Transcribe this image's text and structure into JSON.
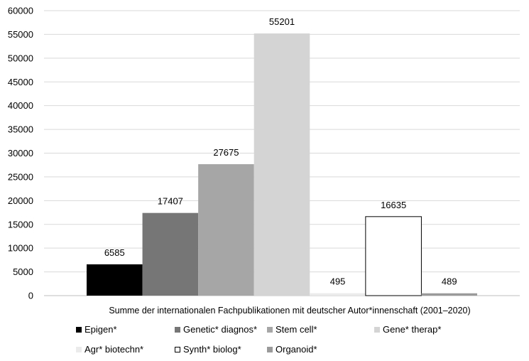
{
  "chart_data": {
    "type": "bar",
    "title": "",
    "xlabel": "Summe der internationalen Fachpublikationen mit deutscher Autor*innenschaft (2001–2020)",
    "ylabel": "",
    "ylim": [
      0,
      60000
    ],
    "yticks": [
      "0",
      "5000",
      "10000",
      "15000",
      "20000",
      "25000",
      "30000",
      "35000",
      "40000",
      "45000",
      "50000",
      "55000",
      "60000"
    ],
    "grid": true,
    "legend_position": "bottom",
    "series": [
      {
        "name": "Epigen*",
        "value": 6585,
        "label": "6585",
        "color": "#000000"
      },
      {
        "name": "Genetic* diagnos*",
        "value": 17407,
        "label": "17407",
        "color": "#767676"
      },
      {
        "name": "Stem cell*",
        "value": 27675,
        "label": "27675",
        "color": "#a6a6a6"
      },
      {
        "name": "Gene* therap*",
        "value": 55201,
        "label": "55201",
        "color": "#d4d4d4"
      },
      {
        "name": "Agr* biotechn*",
        "value": 495,
        "label": "495",
        "color": "#ebebeb"
      },
      {
        "name": "Synth* biolog*",
        "value": 16635,
        "label": "16635",
        "color": "#ffffff"
      },
      {
        "name": "Organoid*",
        "value": 489,
        "label": "489",
        "color": "#9a9a9a"
      }
    ]
  }
}
